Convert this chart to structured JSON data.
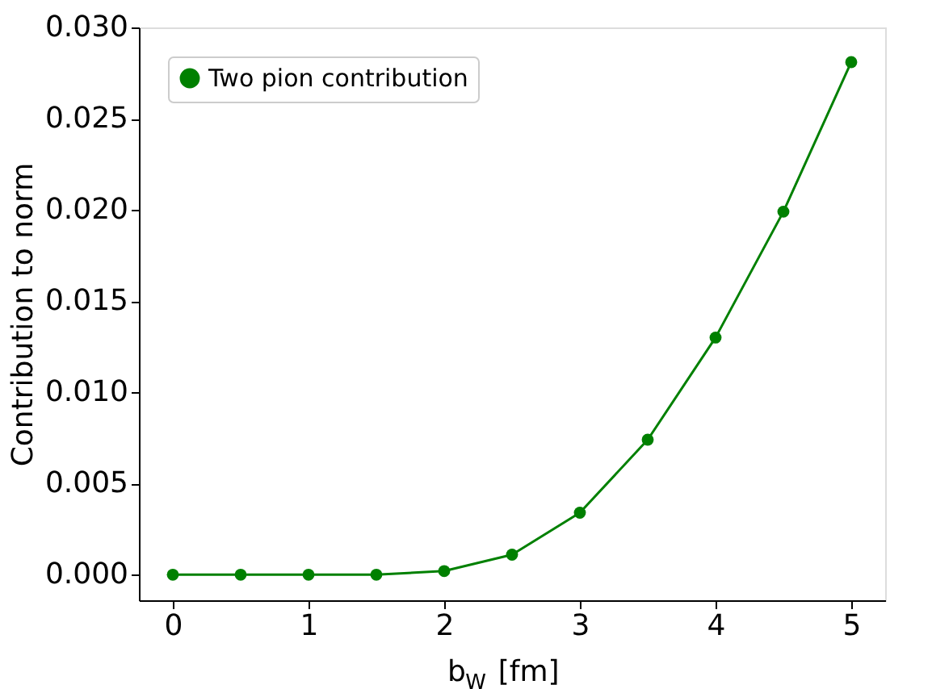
{
  "chart_data": {
    "type": "line",
    "xlabel": "b$_{W}$ [fm]",
    "ylabel": "Contribution to norm",
    "x": [
      0,
      0.5,
      1,
      1.5,
      2,
      2.5,
      3,
      3.5,
      4,
      4.5,
      5
    ],
    "series": [
      {
        "name": "Two pion contribution",
        "color": "#008000",
        "values": [
          0,
          0,
          0,
          0,
          0.0002,
          0.0011,
          0.0034,
          0.0074,
          0.013,
          0.0199,
          0.0281
        ]
      }
    ],
    "xlim": [
      -0.25,
      5.25
    ],
    "ylim": [
      -0.0014,
      0.03
    ],
    "xticks": [
      0,
      1,
      2,
      3,
      4,
      5
    ],
    "yticks": [
      {
        "value": 0,
        "label": "0.000"
      },
      {
        "value": 0.005,
        "label": "0.005"
      },
      {
        "value": 0.01,
        "label": "0.010"
      },
      {
        "value": 0.015,
        "label": "0.015"
      },
      {
        "value": 0.02,
        "label": "0.020"
      },
      {
        "value": 0.025,
        "label": "0.025"
      },
      {
        "value": 0.03,
        "label": "0.030"
      }
    ],
    "grid": false,
    "legend": "top left",
    "marker": "circle",
    "line_style": "solid"
  }
}
